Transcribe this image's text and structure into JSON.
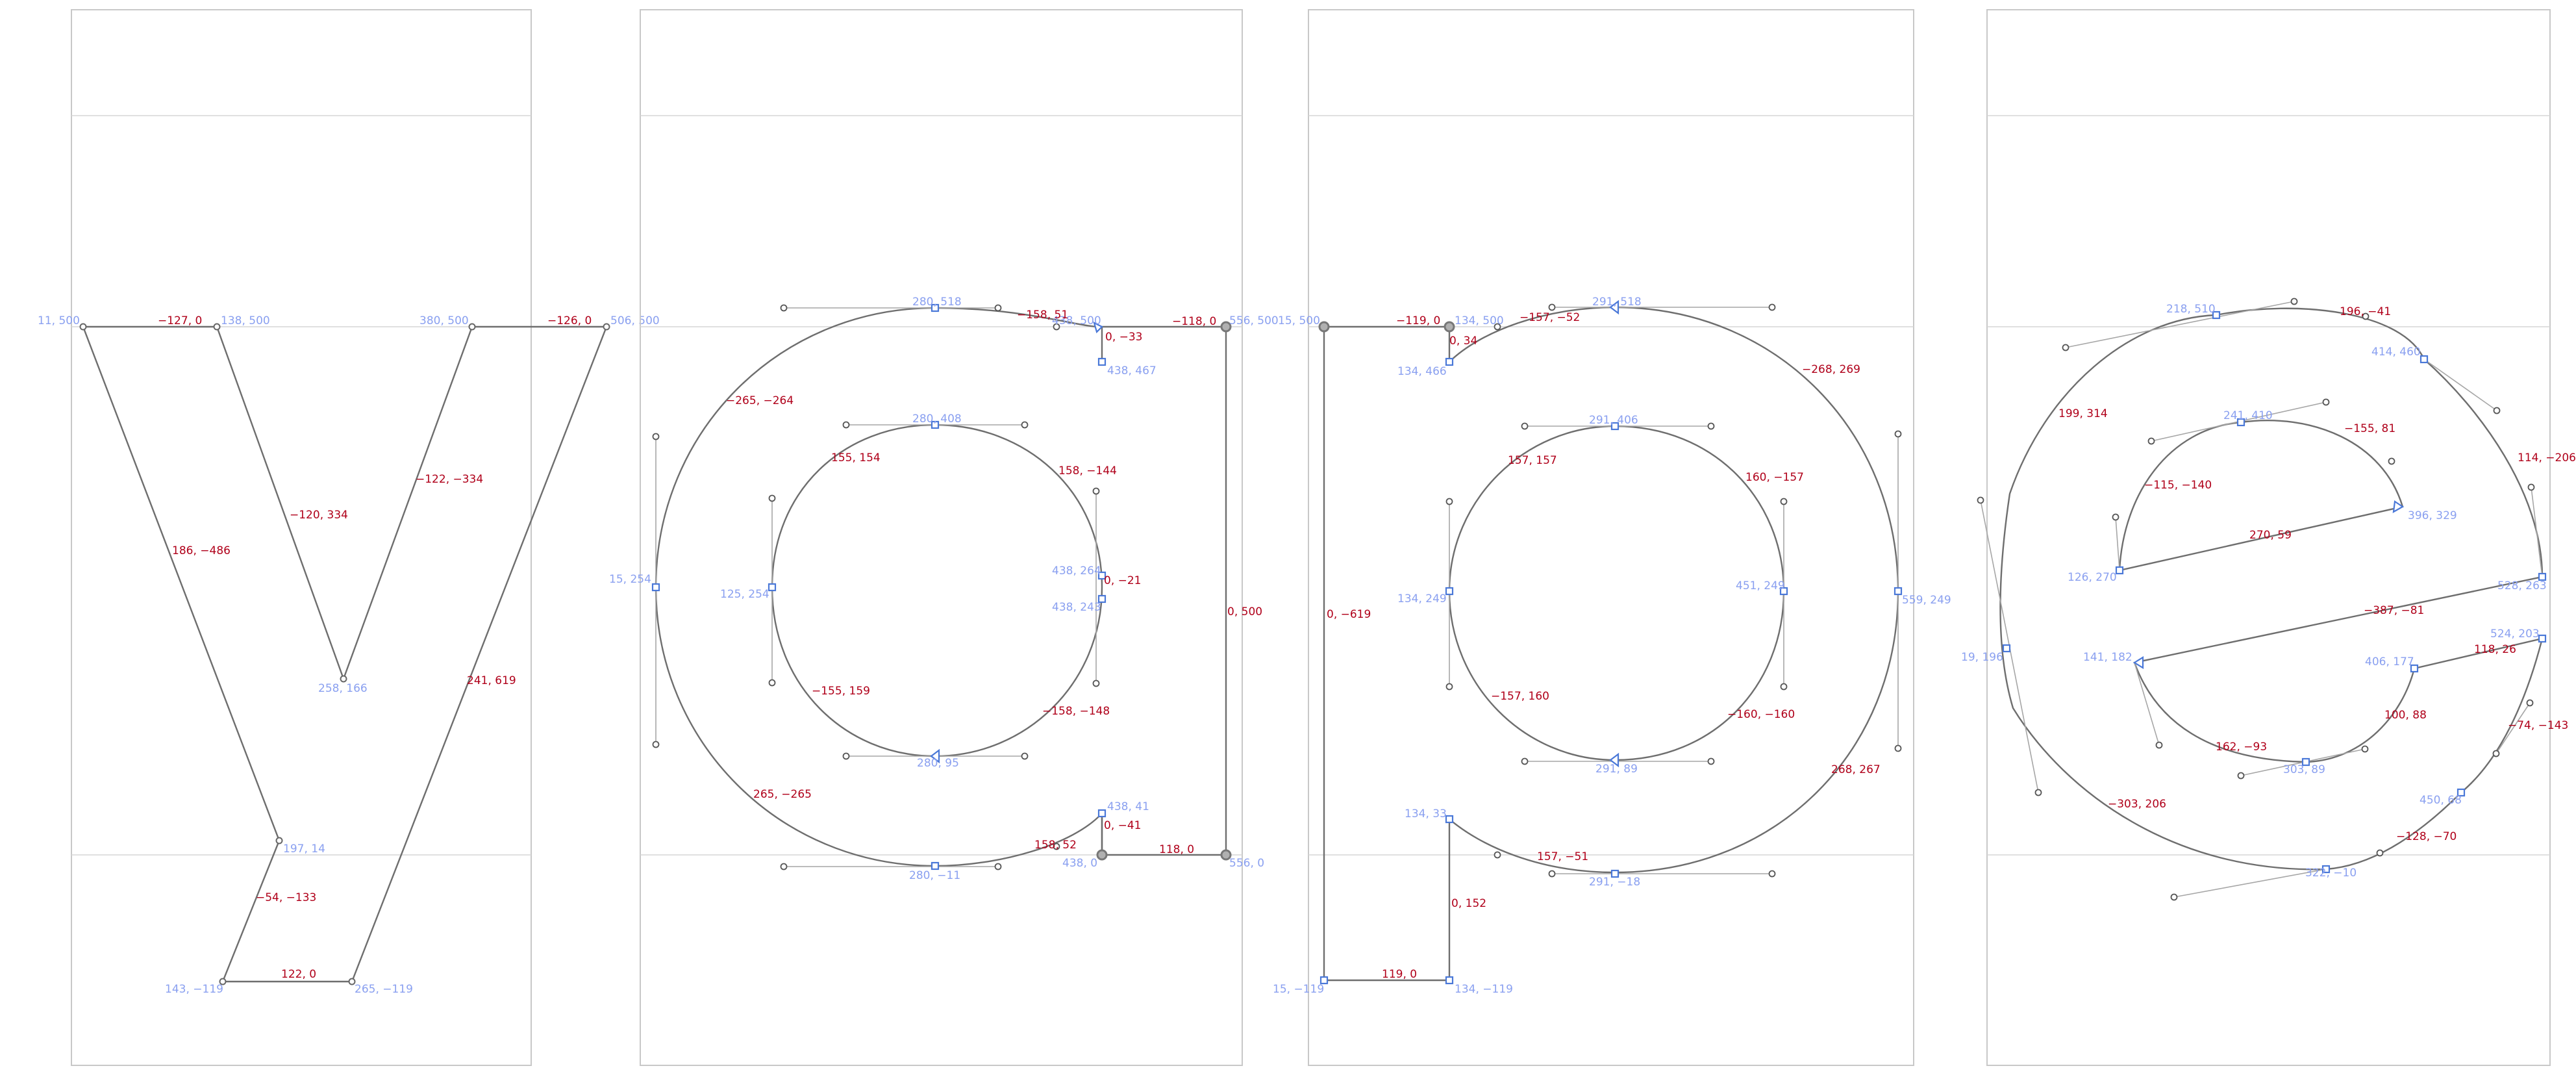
{
  "glyphs": [
    {
      "name": "v",
      "coords": [
        "11, 500",
        "138, 500",
        "380, 500",
        "506, 500",
        "258, 166",
        "197, 14",
        "143, −119",
        "265, −119"
      ],
      "deltas": [
        "−127, 0",
        "−126, 0",
        "−120, 334",
        "−122, −334",
        "186, −486",
        "241, 619",
        "−54, −133",
        "122, 0"
      ]
    },
    {
      "name": "a",
      "coords": [
        "280, 518",
        "438, 500",
        "438, 467",
        "556, 500",
        "280, 408",
        "15, 254",
        "125, 254",
        "438, 264",
        "438, 243",
        "280, 95",
        "438, 41",
        "280, −11",
        "438, 0",
        "556, 0"
      ],
      "deltas": [
        "−158, 51",
        "0, −33",
        "−118, 0",
        "−265, −264",
        "155, 154",
        "158, −144",
        "0, −21",
        "0, 500",
        "−155, 159",
        "−158, −148",
        "265, −265",
        "158, 52",
        "0, −41",
        "118, 0"
      ]
    },
    {
      "name": "p",
      "coords": [
        "15, 500",
        "134, 500",
        "134, 466",
        "291, 518",
        "291, 406",
        "134, 249",
        "451, 249",
        "559, 249",
        "291, 89",
        "134, 33",
        "291, −18",
        "15, −119",
        "134, −119"
      ],
      "deltas": [
        "−119, 0",
        "−157, −52",
        "0, 34",
        "−268, 269",
        "157, 157",
        "160, −157",
        "0, −619",
        "−157, 160",
        "−160, −160",
        "268, 267",
        "157, −51",
        "0, 152",
        "119, 0"
      ]
    },
    {
      "name": "e",
      "coords": [
        "218, 510",
        "414, 460",
        "241, 410",
        "396, 329",
        "126, 270",
        "528, 263",
        "19, 196",
        "141, 182",
        "524, 203",
        "406, 177",
        "303, 89",
        "450, 68",
        "322, −10"
      ],
      "deltas": [
        "196, −41",
        "199, 314",
        "114, −206",
        "−155, 81",
        "−115, −140",
        "270, 59",
        "−387, −81",
        "118, 26",
        "100, 88",
        "162, −93",
        "−74, −143",
        "−303, 206",
        "−128, −70"
      ]
    }
  ]
}
